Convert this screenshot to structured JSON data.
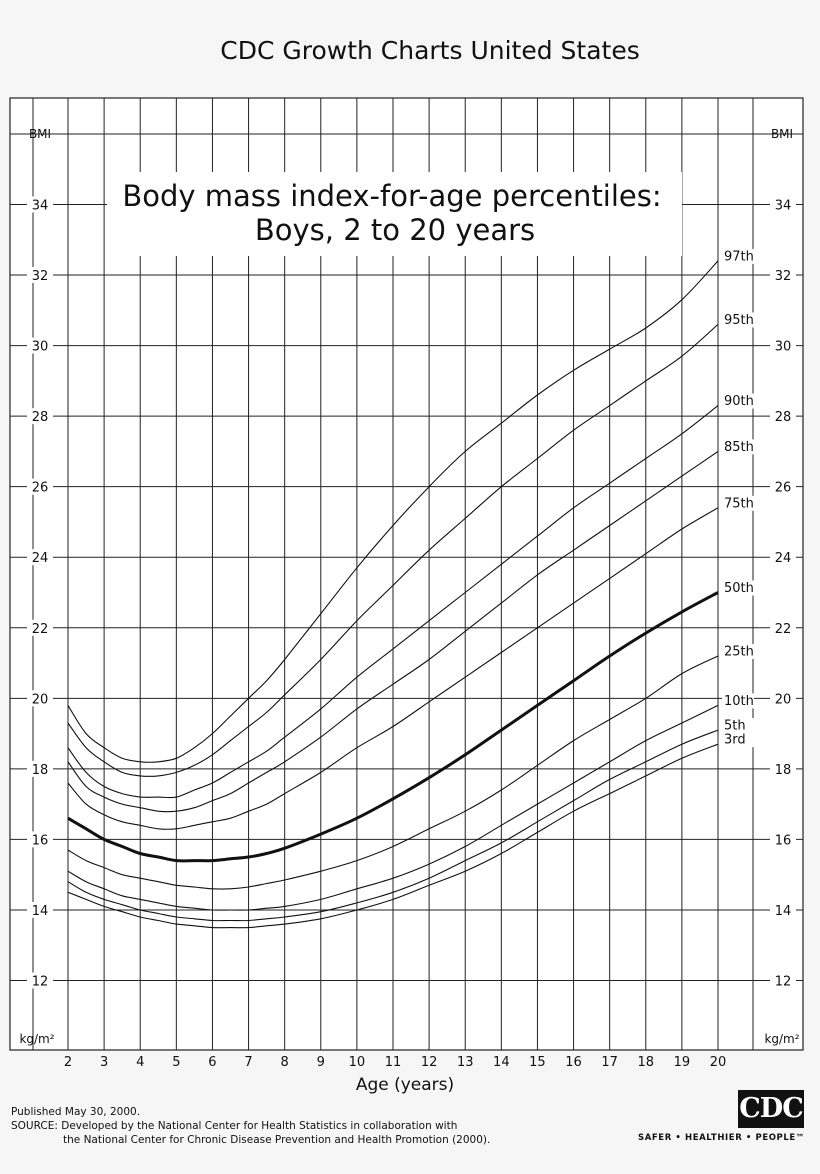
{
  "header": {
    "title": "CDC Growth Charts United States"
  },
  "chart_data": {
    "type": "line",
    "title": "Body mass index-for-age percentiles:",
    "subtitle": "Boys, 2 to 20 years",
    "xlabel": "Age (years)",
    "ylabel": "BMI",
    "unit_label": "kg/m²",
    "xlim": [
      2,
      20
    ],
    "ylim": [
      11,
      36
    ],
    "x_ticks": [
      2,
      3,
      4,
      5,
      6,
      7,
      8,
      9,
      10,
      11,
      12,
      13,
      14,
      15,
      16,
      17,
      18,
      19,
      20
    ],
    "y_ticks": [
      12,
      14,
      16,
      18,
      20,
      22,
      24,
      26,
      28,
      30,
      32,
      34
    ],
    "grid": true,
    "x": [
      2,
      2.5,
      3,
      3.5,
      4,
      4.5,
      5,
      5.5,
      6,
      6.5,
      7,
      7.5,
      8,
      9,
      10,
      11,
      12,
      13,
      14,
      15,
      16,
      17,
      18,
      19,
      20
    ],
    "series": [
      {
        "name": "97th",
        "values": [
          19.8,
          19.0,
          18.6,
          18.3,
          18.2,
          18.2,
          18.3,
          18.6,
          19.0,
          19.5,
          20.0,
          20.5,
          21.1,
          22.4,
          23.7,
          24.9,
          26.0,
          27.0,
          27.8,
          28.6,
          29.3,
          29.9,
          30.5,
          31.3,
          32.4
        ]
      },
      {
        "name": "95th",
        "values": [
          19.3,
          18.6,
          18.2,
          17.9,
          17.8,
          17.8,
          17.9,
          18.1,
          18.4,
          18.8,
          19.2,
          19.6,
          20.1,
          21.1,
          22.2,
          23.2,
          24.2,
          25.1,
          26.0,
          26.8,
          27.6,
          28.3,
          29.0,
          29.7,
          30.6
        ]
      },
      {
        "name": "90th",
        "values": [
          18.6,
          17.9,
          17.5,
          17.3,
          17.2,
          17.2,
          17.2,
          17.4,
          17.6,
          17.9,
          18.2,
          18.5,
          18.9,
          19.7,
          20.6,
          21.4,
          22.2,
          23.0,
          23.8,
          24.6,
          25.4,
          26.1,
          26.8,
          27.5,
          28.3
        ]
      },
      {
        "name": "85th",
        "values": [
          18.2,
          17.5,
          17.2,
          17.0,
          16.9,
          16.8,
          16.8,
          16.9,
          17.1,
          17.3,
          17.6,
          17.9,
          18.2,
          18.9,
          19.7,
          20.4,
          21.1,
          21.9,
          22.7,
          23.5,
          24.2,
          24.9,
          25.6,
          26.3,
          27.0
        ]
      },
      {
        "name": "75th",
        "values": [
          17.6,
          17.0,
          16.7,
          16.5,
          16.4,
          16.3,
          16.3,
          16.4,
          16.5,
          16.6,
          16.8,
          17.0,
          17.3,
          17.9,
          18.6,
          19.2,
          19.9,
          20.6,
          21.3,
          22.0,
          22.7,
          23.4,
          24.1,
          24.8,
          25.4
        ]
      },
      {
        "name": "50th",
        "values": [
          16.6,
          16.3,
          16.0,
          15.8,
          15.6,
          15.5,
          15.4,
          15.4,
          15.4,
          15.45,
          15.5,
          15.6,
          15.75,
          16.15,
          16.6,
          17.15,
          17.75,
          18.4,
          19.1,
          19.8,
          20.5,
          21.2,
          21.85,
          22.45,
          23.0
        ]
      },
      {
        "name": "25th",
        "values": [
          15.7,
          15.4,
          15.2,
          15.0,
          14.9,
          14.8,
          14.7,
          14.65,
          14.6,
          14.6,
          14.65,
          14.75,
          14.85,
          15.1,
          15.4,
          15.8,
          16.3,
          16.8,
          17.4,
          18.1,
          18.8,
          19.4,
          20.0,
          20.7,
          21.2
        ]
      },
      {
        "name": "10th",
        "values": [
          15.1,
          14.8,
          14.6,
          14.4,
          14.3,
          14.2,
          14.1,
          14.05,
          14.0,
          14.0,
          14.0,
          14.05,
          14.1,
          14.3,
          14.6,
          14.9,
          15.3,
          15.8,
          16.4,
          17.0,
          17.6,
          18.2,
          18.8,
          19.3,
          19.8
        ]
      },
      {
        "name": "5th",
        "values": [
          14.8,
          14.5,
          14.3,
          14.15,
          14.0,
          13.9,
          13.8,
          13.75,
          13.7,
          13.7,
          13.7,
          13.75,
          13.8,
          13.95,
          14.2,
          14.5,
          14.9,
          15.4,
          15.9,
          16.5,
          17.1,
          17.7,
          18.2,
          18.7,
          19.1
        ]
      },
      {
        "name": "3rd",
        "values": [
          14.5,
          14.3,
          14.1,
          13.95,
          13.8,
          13.7,
          13.6,
          13.55,
          13.5,
          13.5,
          13.5,
          13.55,
          13.6,
          13.75,
          14.0,
          14.3,
          14.7,
          15.1,
          15.6,
          16.2,
          16.8,
          17.3,
          17.8,
          18.3,
          18.7
        ]
      }
    ]
  },
  "footer": {
    "published": "Published May 30, 2000.",
    "source_line1": "SOURCE: Developed by the National Center for Health Statistics in collaboration with",
    "source_line2": "the National Center for Chronic Disease Prevention and Health Promotion (2000).",
    "logo_text": "CDC",
    "tagline": "SAFER • HEALTHIER • PEOPLE™"
  }
}
